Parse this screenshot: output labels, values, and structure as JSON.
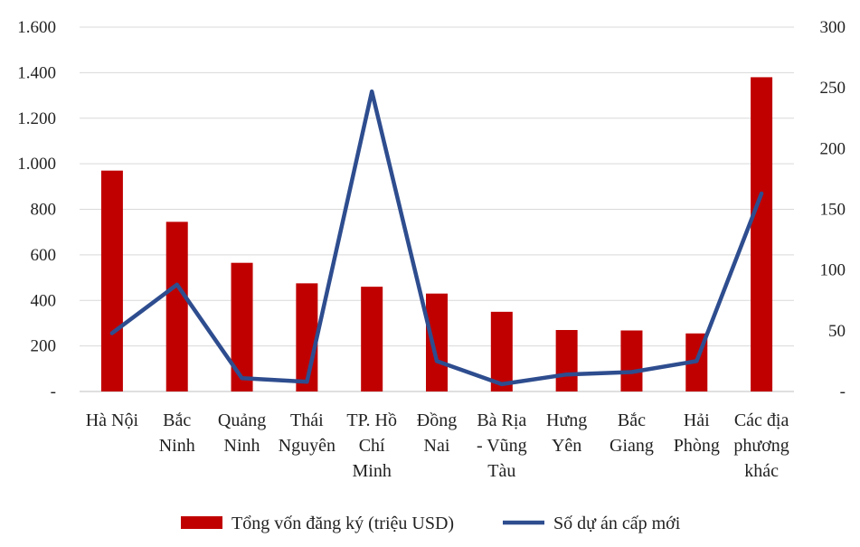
{
  "chart_data": {
    "type": "bar",
    "categories": [
      [
        "Hà Nội"
      ],
      [
        "Bắc",
        "Ninh"
      ],
      [
        "Quảng",
        "Ninh"
      ],
      [
        "Thái",
        "Nguyên"
      ],
      [
        "TP. Hồ",
        "Chí",
        "Minh"
      ],
      [
        "Đồng",
        "Nai"
      ],
      [
        "Bà Rịa",
        "- Vũng",
        "Tàu"
      ],
      [
        "Hưng",
        "Yên"
      ],
      [
        "Bắc",
        "Giang"
      ],
      [
        "Hải",
        "Phòng"
      ],
      [
        "Các địa",
        "phương",
        "khác"
      ]
    ],
    "series": [
      {
        "name": "Tổng vốn đăng ký (triệu USD)",
        "type": "bar",
        "axis": "left",
        "color": "#c00000",
        "values": [
          970,
          745,
          565,
          475,
          460,
          430,
          350,
          270,
          268,
          255,
          1380
        ]
      },
      {
        "name": "Số dự án cấp mới",
        "type": "line",
        "axis": "right",
        "color": "#2e4d8f",
        "values": [
          48,
          88,
          11,
          8,
          247,
          25,
          6,
          14,
          16,
          25,
          163
        ]
      }
    ],
    "y_left": {
      "ylim": [
        0,
        1600
      ],
      "ticks": [
        0,
        200,
        400,
        600,
        800,
        1000,
        1200,
        1400,
        1600
      ],
      "tick_labels": [
        "-",
        "200",
        "400",
        "600",
        "800",
        "1.000",
        "1.200",
        "1.400",
        "1.600"
      ]
    },
    "y_right": {
      "ylim": [
        0,
        300
      ],
      "ticks": [
        0,
        50,
        100,
        150,
        200,
        250,
        300
      ],
      "tick_labels": [
        "-",
        "50",
        "100",
        "150",
        "200",
        "250",
        "300"
      ]
    },
    "grid": true,
    "legend_position": "bottom"
  }
}
